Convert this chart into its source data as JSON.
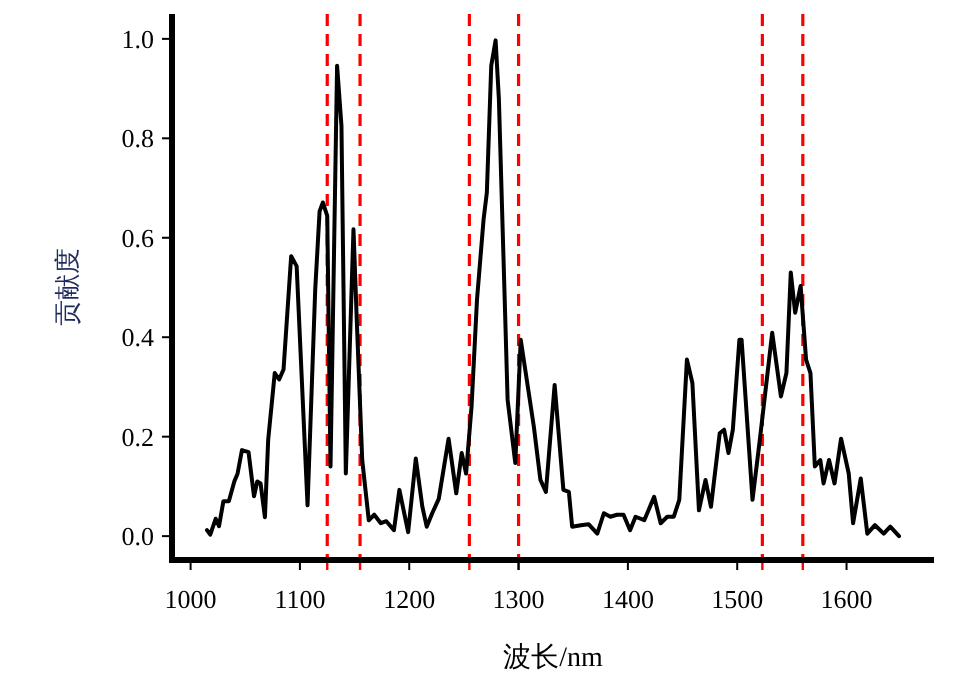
{
  "chart_data": {
    "type": "line",
    "xlabel": "波长/nm",
    "ylabel": "贡献度",
    "xlim": [
      983,
      1680
    ],
    "ylim": [
      -0.048,
      1.05
    ],
    "xticks": [
      1000,
      1100,
      1200,
      1300,
      1400,
      1500,
      1600
    ],
    "yticks": [
      {
        "value": 0,
        "label": "0.0"
      },
      {
        "value": 0.2,
        "label": "0.2"
      },
      {
        "value": 0.4,
        "label": "0.4"
      },
      {
        "value": 0.6,
        "label": "0.6"
      },
      {
        "value": 0.8,
        "label": "0.8"
      },
      {
        "value": 1,
        "label": "1.0"
      }
    ],
    "grid": false,
    "marker": "none",
    "line_style": "solid",
    "ref_lines": [
      {
        "axis": "x",
        "value": 1125,
        "color": "#ff0000",
        "line_style": "dashed"
      },
      {
        "axis": "x",
        "value": 1155,
        "color": "#ff0000",
        "line_style": "dashed"
      },
      {
        "axis": "x",
        "value": 1255,
        "color": "#ff0000",
        "line_style": "dashed"
      },
      {
        "axis": "x",
        "value": 1300,
        "color": "#ff0000",
        "line_style": "dashed"
      },
      {
        "axis": "x",
        "value": 1523,
        "color": "#ff0000",
        "line_style": "dashed"
      },
      {
        "axis": "x",
        "value": 1560,
        "color": "#ff0000",
        "line_style": "dashed"
      }
    ],
    "series": [
      {
        "color": "#000000",
        "x": [
          1015,
          1018,
          1023,
          1026,
          1030,
          1035,
          1040,
          1043,
          1047,
          1053,
          1058,
          1061,
          1064,
          1068,
          1071,
          1077,
          1081,
          1085,
          1092,
          1097,
          1107,
          1114,
          1118,
          1121,
          1125,
          1128,
          1134,
          1138,
          1142,
          1149,
          1152,
          1157,
          1163,
          1168,
          1174,
          1179,
          1186,
          1191,
          1199,
          1206,
          1212,
          1216,
          1221,
          1227,
          1236,
          1243,
          1248,
          1252,
          1257,
          1262,
          1268,
          1271,
          1275,
          1279,
          1282,
          1290,
          1297,
          1302,
          1314,
          1320,
          1325,
          1333,
          1341,
          1346,
          1349,
          1357,
          1364,
          1372,
          1378,
          1384,
          1390,
          1396,
          1402,
          1407,
          1415,
          1424,
          1430,
          1436,
          1442,
          1447,
          1454,
          1459,
          1465,
          1471,
          1476,
          1484,
          1488,
          1492,
          1496,
          1502,
          1504,
          1514,
          1521,
          1532,
          1540,
          1545,
          1549,
          1553,
          1558,
          1563,
          1567,
          1571,
          1576,
          1579,
          1584,
          1589,
          1595,
          1602,
          1606,
          1613,
          1619,
          1626,
          1634,
          1640,
          1648
        ],
        "values": [
          0.012,
          0.003,
          0.035,
          0.02,
          0.07,
          0.07,
          0.11,
          0.126,
          0.173,
          0.169,
          0.08,
          0.11,
          0.106,
          0.038,
          0.194,
          0.328,
          0.315,
          0.335,
          0.563,
          0.543,
          0.062,
          0.496,
          0.653,
          0.671,
          0.644,
          0.14,
          0.946,
          0.825,
          0.126,
          0.617,
          0.435,
          0.153,
          0.032,
          0.043,
          0.026,
          0.03,
          0.012,
          0.093,
          0.008,
          0.156,
          0.059,
          0.019,
          0.046,
          0.075,
          0.196,
          0.086,
          0.167,
          0.126,
          0.261,
          0.476,
          0.637,
          0.691,
          0.946,
          0.997,
          0.879,
          0.274,
          0.147,
          0.395,
          0.22,
          0.113,
          0.089,
          0.304,
          0.093,
          0.089,
          0.019,
          0.022,
          0.024,
          0.005,
          0.046,
          0.039,
          0.043,
          0.043,
          0.012,
          0.039,
          0.032,
          0.079,
          0.026,
          0.039,
          0.039,
          0.073,
          0.355,
          0.308,
          0.052,
          0.113,
          0.059,
          0.207,
          0.214,
          0.167,
          0.214,
          0.395,
          0.395,
          0.073,
          0.2,
          0.409,
          0.281,
          0.328,
          0.53,
          0.449,
          0.503,
          0.355,
          0.328,
          0.14,
          0.153,
          0.106,
          0.153,
          0.106,
          0.196,
          0.126,
          0.026,
          0.116,
          0.005,
          0.022,
          0.005,
          0.019,
          0.0
        ]
      }
    ]
  }
}
